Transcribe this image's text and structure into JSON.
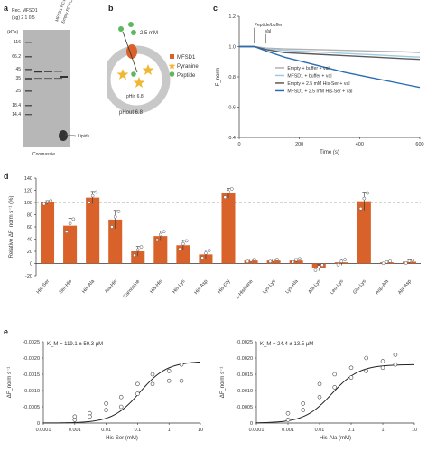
{
  "panels": {
    "a": "a",
    "b": "b",
    "c": "c",
    "d": "d",
    "e": "e"
  },
  "panel_a": {
    "header_left": "Rec. MFSD1",
    "header_amounts": "(µg)  2  1  0.5",
    "header_right_1": "MFSD1 PC:POPE:CHS",
    "header_right_2": "Empty PC:POPE:CHS",
    "kda_label": "(kDa)",
    "markers": [
      "116",
      "66.2",
      "45",
      "35",
      "25",
      "18.4",
      "14.4"
    ],
    "lipids_label": "Lipids",
    "stain_label": "Coomassie"
  },
  "panel_b": {
    "concentration": "2.5 mM",
    "protein_label": "MFSD1",
    "legend": [
      "MFSD1",
      "Pyranine",
      "Peptide"
    ],
    "ph_in": "pHin 6.8",
    "ph_out": "pHout 6.8",
    "colors": {
      "protein": "#d9622b",
      "pyranine": "#f2b632",
      "peptide": "#5cb85c",
      "membrane": "#c8c8c8"
    }
  },
  "chart_data": [
    {
      "id": "c",
      "type": "line",
      "xlabel": "Time (s)",
      "ylabel": "F_norm",
      "xlim": [
        0,
        600
      ],
      "ylim": [
        0.4,
        1.2
      ],
      "xticks": [
        0,
        200,
        400,
        600
      ],
      "yticks": [
        0.4,
        0.6,
        0.8,
        1.0,
        1.2
      ],
      "annotations": [
        "Peptide/buffer",
        "Val"
      ],
      "legend_placement": "bottom-right",
      "series": [
        {
          "name": "Empty + buffer + val",
          "color": "#b0b0b0",
          "x": [
            0,
            50,
            90,
            150,
            250,
            350,
            450,
            550,
            600
          ],
          "y": [
            1.0,
            1.0,
            0.99,
            0.985,
            0.98,
            0.975,
            0.97,
            0.965,
            0.96
          ]
        },
        {
          "name": "MFSD1 + buffer + val",
          "color": "#9ecae1",
          "x": [
            0,
            50,
            90,
            150,
            250,
            350,
            450,
            550,
            600
          ],
          "y": [
            1.0,
            1.0,
            0.985,
            0.975,
            0.965,
            0.955,
            0.945,
            0.935,
            0.93
          ]
        },
        {
          "name": "Empty + 2.5 mM His-Ser + val",
          "color": "#5a5a5a",
          "x": [
            0,
            50,
            90,
            150,
            250,
            350,
            450,
            550,
            600
          ],
          "y": [
            1.0,
            1.0,
            0.98,
            0.96,
            0.95,
            0.94,
            0.93,
            0.92,
            0.915
          ]
        },
        {
          "name": "MFSD1 + 2.5 mM His-Ser + val",
          "color": "#2a6db5",
          "x": [
            0,
            50,
            90,
            150,
            250,
            350,
            450,
            550,
            600
          ],
          "y": [
            1.0,
            1.0,
            0.97,
            0.93,
            0.88,
            0.83,
            0.79,
            0.75,
            0.73
          ]
        }
      ]
    },
    {
      "id": "d",
      "type": "bar",
      "ylabel": "Relative ΔF_norm s⁻¹ (%)",
      "ylim": [
        -20,
        140
      ],
      "yticks": [
        -20,
        0,
        20,
        40,
        60,
        80,
        100,
        120,
        140
      ],
      "reference_line": 100,
      "color": "#d9622b",
      "categories": [
        "His-Ser",
        "Ser-His",
        "His-Ala",
        "Ala-His",
        "Carnosine",
        "His-His",
        "His-Lys",
        "His-Asp",
        "His-Gly",
        "L-Histidine",
        "Lys-Lys",
        "Lys-Ala",
        "Ala-Lys",
        "Leu-Lys",
        "Glu-Lys",
        "Asp-Ala",
        "Ala-Asp"
      ],
      "values": [
        100,
        62,
        108,
        72,
        20,
        45,
        30,
        15,
        115,
        5,
        5,
        5,
        -7,
        2,
        102,
        2,
        3
      ],
      "errors": [
        3,
        12,
        10,
        15,
        8,
        8,
        8,
        7,
        8,
        2,
        2,
        3,
        5,
        5,
        15,
        2,
        3
      ]
    },
    {
      "id": "e1",
      "type": "scatter",
      "xlabel": "His-Ser (mM)",
      "ylabel": "ΔF_norm s⁻¹",
      "annotation": "K_M = 119.1 ± 59.3 µM",
      "xscale": "log",
      "xlim": [
        0.0001,
        10
      ],
      "xticks": [
        "0.0001",
        "0.001",
        "0.01",
        "0.1",
        "1",
        "10"
      ],
      "ylim": [
        0,
        -0.0025
      ],
      "yticks": [
        "0",
        "-0.0005",
        "-0.0010",
        "-0.0015",
        "-0.0020",
        "-0.0025"
      ],
      "x": [
        0.001,
        0.001,
        0.003,
        0.003,
        0.01,
        0.01,
        0.03,
        0.03,
        0.1,
        0.1,
        0.3,
        0.3,
        1,
        1,
        2.5,
        2.5
      ],
      "y": [
        -0.0001,
        -0.0002,
        -0.0003,
        -0.0002,
        -0.0004,
        -0.0006,
        -0.0008,
        -0.0005,
        -0.0009,
        -0.0012,
        -0.0012,
        -0.0015,
        -0.0016,
        -0.0013,
        -0.0018,
        -0.0013
      ],
      "fit_vmax": -0.0019,
      "fit_km": 0.119
    },
    {
      "id": "e2",
      "type": "scatter",
      "xlabel": "His-Ala (mM)",
      "ylabel": "ΔF_norm s⁻¹",
      "annotation": "K_M = 24.4 ± 13.5 µM",
      "xscale": "log",
      "xlim": [
        0.0001,
        10
      ],
      "xticks": [
        "0.0001",
        "0.001",
        "0.01",
        "0.1",
        "1",
        "10"
      ],
      "ylim": [
        0,
        -0.0025
      ],
      "yticks": [
        "0",
        "-0.0005",
        "-0.0010",
        "-0.0015",
        "-0.0020",
        "-0.0025"
      ],
      "x": [
        0.001,
        0.001,
        0.003,
        0.003,
        0.01,
        0.01,
        0.03,
        0.03,
        0.1,
        0.1,
        0.3,
        0.3,
        1,
        1,
        2.5,
        2.5
      ],
      "y": [
        -0.0001,
        -0.0003,
        -0.0004,
        -0.0006,
        -0.0008,
        -0.0012,
        -0.0011,
        -0.0015,
        -0.0014,
        -0.0017,
        -0.0016,
        -0.002,
        -0.0019,
        -0.0017,
        -0.0018,
        -0.0021
      ],
      "fit_vmax": -0.0018,
      "fit_km": 0.0244
    }
  ]
}
